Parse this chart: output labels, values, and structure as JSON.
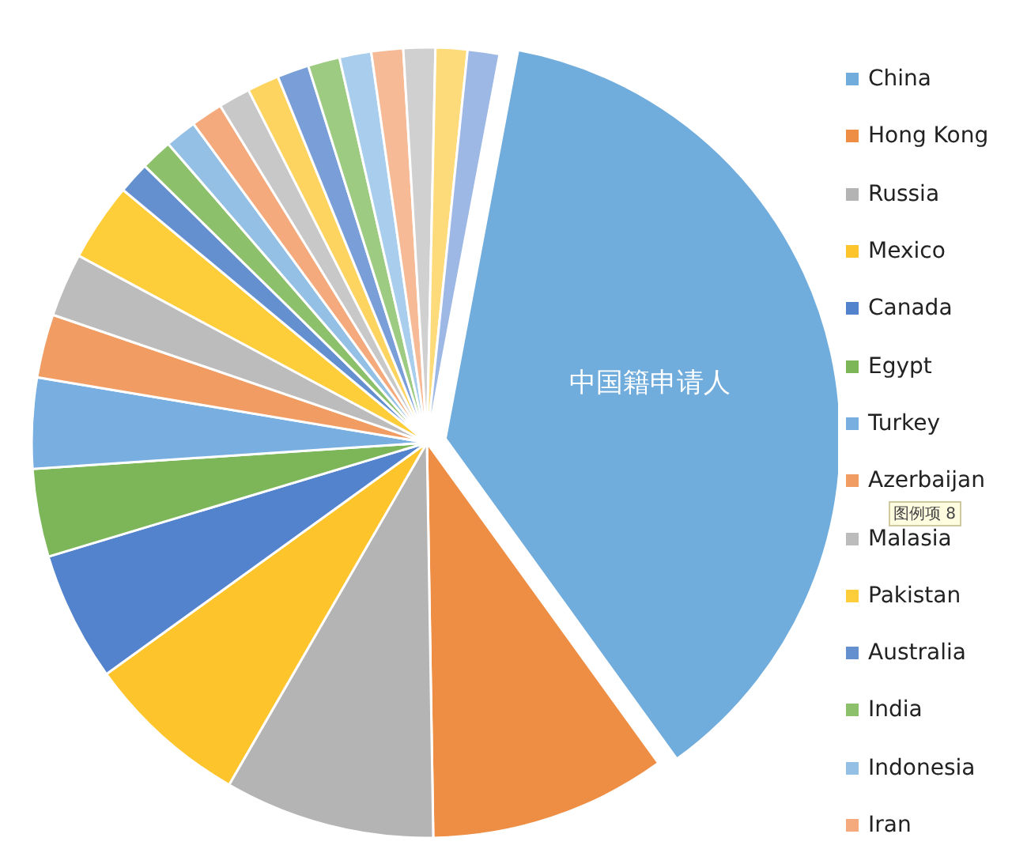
{
  "chart_data": {
    "type": "pie",
    "categories": [
      "China",
      "Hong Kong",
      "Russia",
      "Mexico",
      "Canada",
      "Egypt",
      "Turkey",
      "Azerbaijan",
      "Malasia",
      "Pakistan",
      "Australia",
      "India",
      "Indonesia",
      "Iran",
      null,
      null,
      null,
      null,
      null,
      null,
      null,
      null,
      null
    ],
    "values": [
      37.1,
      9.7,
      8.6,
      6.7,
      5.3,
      3.6,
      3.7,
      2.6,
      2.6,
      3.2,
      1.3,
      1.3,
      1.3,
      1.3,
      1.3,
      1.3,
      1.3,
      1.3,
      1.3,
      1.3,
      1.3,
      1.3,
      1.3
    ],
    "colors": [
      "#70acdc",
      "#ee8e44",
      "#b4b4b4",
      "#fdc42b",
      "#5283cc",
      "#7cb659",
      "#78aee0",
      "#f19c62",
      "#bcbcbc",
      "#fecd3a",
      "#6590d0",
      "#8dc06b",
      "#95c0e6",
      "#f4aa7c",
      "#c8c8c8",
      "#fed460",
      "#7a9fd8",
      "#9ecb82",
      "#a9cdec",
      "#f6bb96",
      "#d0d0d0",
      "#fedb7a",
      "#9db8e4"
    ],
    "legend": "right",
    "annotations": [
      {
        "text": "中国籍申请人",
        "x": "China"
      },
      "图例项 8"
    ]
  }
}
